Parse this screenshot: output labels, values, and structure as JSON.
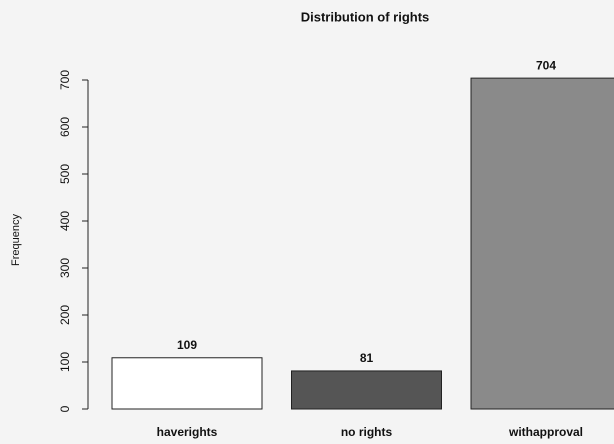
{
  "chart_data": {
    "type": "bar",
    "title": "Distribution of rights",
    "y_label": "Frequency",
    "categories": [
      "haverights",
      "no rights",
      "withapproval"
    ],
    "values": [
      109,
      81,
      704
    ],
    "colors": [
      "#ffffff",
      "#555555",
      "#8a8a8a"
    ],
    "ylim": [
      0,
      750
    ],
    "yticks": [
      0,
      100,
      200,
      300,
      400,
      500,
      600,
      700
    ],
    "grid": false
  }
}
